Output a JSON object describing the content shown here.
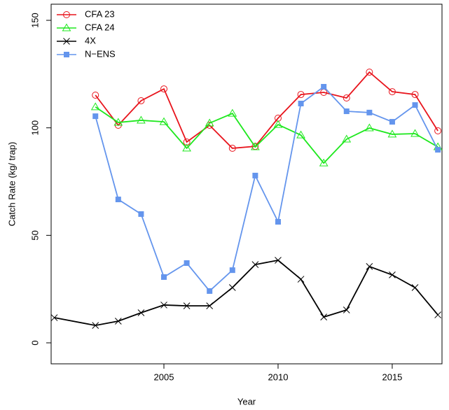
{
  "chart_data": {
    "type": "line",
    "x_label": "Year",
    "y_label": "Catch Rate (kg/ trap)",
    "xlim": [
      2000.06,
      2017.18
    ],
    "ylim": [
      -9.76,
      157.5
    ],
    "xticks": [
      2005,
      2010,
      2015
    ],
    "yticks": [
      0,
      50,
      100,
      150
    ],
    "legend": "top-left",
    "series": [
      {
        "name": "CFA 23",
        "color": "#e8141c",
        "marker": "circle",
        "x": [
          2002,
          2003,
          2004,
          2005,
          2006,
          2007,
          2008,
          2009,
          2010,
          2011,
          2012,
          2013,
          2014,
          2015,
          2016,
          2017
        ],
        "values": [
          115.2,
          101.2,
          112.6,
          118.1,
          93.4,
          101.2,
          90.5,
          91.4,
          104.5,
          115.5,
          116.5,
          113.9,
          125.9,
          116.8,
          115.5,
          98.6
        ]
      },
      {
        "name": "CFA 24",
        "color": "#1ee81e",
        "marker": "triangle",
        "x": [
          2002,
          2003,
          2004,
          2005,
          2006,
          2007,
          2008,
          2009,
          2010,
          2011,
          2012,
          2013,
          2014,
          2015,
          2016,
          2017
        ],
        "values": [
          109.7,
          102.5,
          103.5,
          102.8,
          90.5,
          102.2,
          106.7,
          91.1,
          101.5,
          96.6,
          83.6,
          94.7,
          99.9,
          97.0,
          97.3,
          91.1
        ]
      },
      {
        "name": "4X",
        "color": "#000000",
        "marker": "cross",
        "x": [
          2000.2,
          2002,
          2003,
          2004,
          2005,
          2006,
          2007,
          2008,
          2009,
          2010,
          2011,
          2012,
          2013,
          2014,
          2015,
          2016,
          2017
        ],
        "values": [
          11.7,
          8.1,
          10.1,
          14.0,
          17.6,
          17.2,
          17.2,
          25.7,
          36.4,
          38.4,
          29.6,
          12.0,
          15.3,
          35.5,
          31.6,
          25.7,
          13.0
        ]
      },
      {
        "name": "N−ENS",
        "color": "#6495ed",
        "marker": "square",
        "x": [
          2002,
          2003,
          2004,
          2005,
          2006,
          2007,
          2008,
          2009,
          2010,
          2011,
          2012,
          2013,
          2014,
          2015,
          2016,
          2017
        ],
        "values": [
          105.4,
          66.7,
          59.9,
          30.6,
          37.1,
          24.1,
          33.8,
          77.8,
          56.3,
          111.3,
          119.1,
          107.7,
          107.1,
          102.8,
          110.6,
          89.8
        ]
      }
    ]
  }
}
